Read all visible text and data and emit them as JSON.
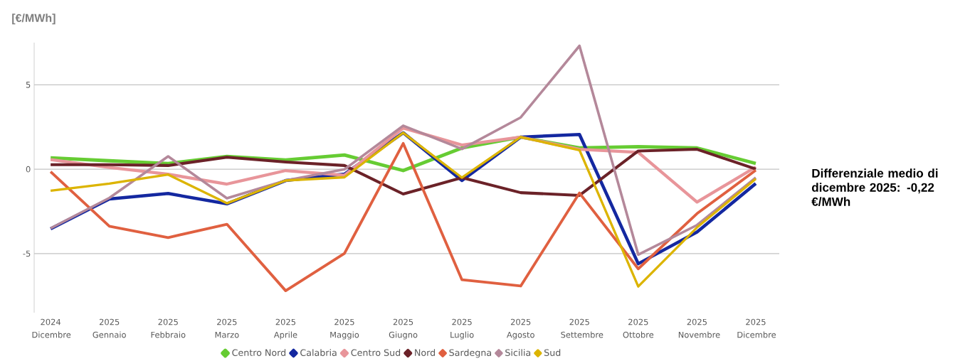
{
  "chart_data": {
    "type": "line",
    "categories": [
      "2024 Dicembre",
      "2025 Gennaio",
      "2025 Febbraio",
      "2025 Marzo",
      "2025 Aprile",
      "2025 Maggio",
      "2025 Giugno",
      "2025 Luglio",
      "2025 Agosto",
      "2025 Settembre",
      "2025 Ottobre",
      "2025 Novembre",
      "2025 Dicembre"
    ],
    "series": [
      {
        "name": "Centro Nord",
        "color": "#66cc33",
        "values": [
          0.67,
          0.5,
          0.34,
          0.76,
          0.55,
          0.84,
          -0.08,
          1.26,
          1.9,
          1.26,
          1.34,
          1.26,
          0.34
        ]
      },
      {
        "name": "Calabria",
        "color": "#1428a0",
        "values": [
          -3.53,
          -1.76,
          -1.44,
          -2.05,
          -0.67,
          -0.29,
          2.16,
          -0.67,
          1.9,
          2.06,
          -5.6,
          -3.72,
          -0.85
        ]
      },
      {
        "name": "Centro Sud",
        "color": "#e8959a",
        "values": [
          0.57,
          0.1,
          -0.3,
          -0.88,
          -0.08,
          -0.36,
          2.44,
          1.43,
          1.9,
          1.18,
          1.0,
          -1.95,
          0.13
        ]
      },
      {
        "name": "Nord",
        "color": "#6b2228",
        "values": [
          0.27,
          0.27,
          0.22,
          0.71,
          0.43,
          0.22,
          -1.47,
          -0.5,
          -1.39,
          -1.55,
          1.08,
          1.18,
          0.01
        ]
      },
      {
        "name": "Sardegna",
        "color": "#e06040",
        "values": [
          -0.15,
          -3.38,
          -4.05,
          -3.26,
          -7.2,
          -4.99,
          1.53,
          -6.55,
          -6.92,
          -1.41,
          -5.9,
          -2.63,
          -0.06
        ]
      },
      {
        "name": "Sicilia",
        "color": "#b4889a",
        "values": [
          -3.5,
          -1.7,
          0.76,
          -1.72,
          -0.67,
          -0.01,
          2.58,
          1.2,
          3.07,
          7.31,
          -5.06,
          -3.31,
          -0.5
        ]
      },
      {
        "name": "Sud",
        "color": "#dcb400",
        "values": [
          -1.27,
          -0.85,
          -0.32,
          -2.02,
          -0.67,
          -0.48,
          2.16,
          -0.5,
          1.9,
          1.13,
          -6.95,
          -3.45,
          -0.57
        ]
      }
    ],
    "ylim": [
      -8.5,
      7.5
    ],
    "yticks": [
      -5,
      0,
      5
    ],
    "grid": "y",
    "legend": "bottom",
    "marker": "none",
    "line_style": "solid",
    "annotations": [
      "[€/MWh]",
      "Differenziale medio di dicembre 2025: -0,22 €/MWh"
    ]
  }
}
